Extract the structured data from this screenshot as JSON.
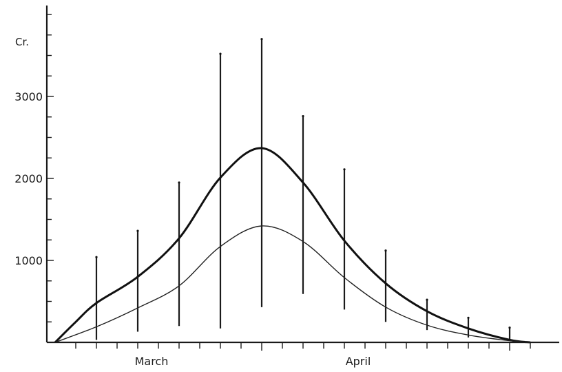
{
  "chart_data": {
    "type": "line",
    "y_unit_label": "Cr.",
    "ylim": [
      0,
      4100
    ],
    "yticks": [
      1000,
      2000,
      3000
    ],
    "ytick_labels": [
      "1000",
      "2000",
      "3000"
    ],
    "xlim": [
      0,
      12
    ],
    "x_minor_ticks": [
      0.5,
      1,
      1.5,
      2,
      2.5,
      3,
      3.5,
      4,
      4.5,
      5,
      5.5,
      6,
      6.5,
      7,
      7.5,
      8,
      8.5,
      9,
      9.5,
      10,
      10.5,
      11,
      11.5
    ],
    "x_month_ticks": [
      5,
      11
    ],
    "month_labels": [
      {
        "text": "March",
        "x": 2.5
      },
      {
        "text": "April",
        "x": 7.5
      }
    ],
    "grid": false,
    "series": [
      {
        "style": "thick",
        "points": [
          [
            0,
            0
          ],
          [
            0.5,
            250
          ],
          [
            1,
            480
          ],
          [
            2,
            800
          ],
          [
            3,
            1270
          ],
          [
            4,
            2010
          ],
          [
            5,
            2370
          ],
          [
            6,
            1950
          ],
          [
            7,
            1240
          ],
          [
            8,
            720
          ],
          [
            9,
            380
          ],
          [
            10,
            170
          ],
          [
            11,
            30
          ],
          [
            11.5,
            0
          ]
        ]
      },
      {
        "style": "thin",
        "points": [
          [
            0,
            0
          ],
          [
            1,
            190
          ],
          [
            2,
            420
          ],
          [
            3,
            690
          ],
          [
            4,
            1170
          ],
          [
            5,
            1420
          ],
          [
            6,
            1230
          ],
          [
            7,
            790
          ],
          [
            8,
            430
          ],
          [
            9,
            210
          ],
          [
            10,
            90
          ],
          [
            11,
            20
          ],
          [
            11.5,
            0
          ]
        ]
      }
    ],
    "range_bars": [
      {
        "x": 1,
        "low": 30,
        "high": 1040
      },
      {
        "x": 2,
        "low": 130,
        "high": 1360
      },
      {
        "x": 3,
        "low": 200,
        "high": 1950
      },
      {
        "x": 4,
        "low": 170,
        "high": 3520
      },
      {
        "x": 5,
        "low": 430,
        "high": 3700
      },
      {
        "x": 6,
        "low": 590,
        "high": 2760
      },
      {
        "x": 7,
        "low": 400,
        "high": 2110
      },
      {
        "x": 8,
        "low": 250,
        "high": 1120
      },
      {
        "x": 9,
        "low": 150,
        "high": 520
      },
      {
        "x": 10,
        "low": 60,
        "high": 300
      },
      {
        "x": 11,
        "low": 40,
        "high": 180
      }
    ]
  }
}
